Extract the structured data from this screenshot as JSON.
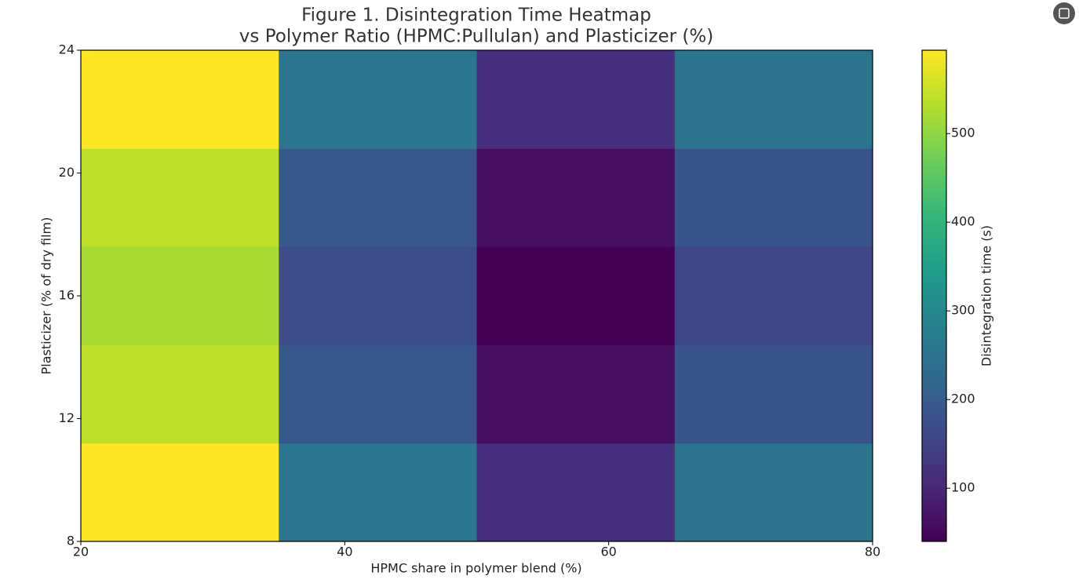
{
  "chart_data": {
    "type": "heatmap",
    "title": "Figure 1. Disintegration Time Heatmap",
    "subtitle": "vs Polymer Ratio (HPMC:Pullulan) and Plasticizer (%)",
    "x_label": "HPMC share in polymer blend (%)",
    "y_label": "Plasticizer (% of dry film)",
    "colorbar_label": "Disintegration time (s)",
    "x_bins": [
      20,
      35,
      50,
      65,
      80
    ],
    "y_bins": [
      8,
      11.2,
      14.4,
      17.6,
      20.8,
      24
    ],
    "values": [
      [
        594,
        255,
        115,
        250
      ],
      [
        540,
        190,
        60,
        180
      ],
      [
        520,
        170,
        40,
        160
      ],
      [
        540,
        190,
        60,
        180
      ],
      [
        594,
        255,
        115,
        250
      ]
    ],
    "xlim": [
      20,
      80
    ],
    "xticks": [
      20,
      40,
      60,
      80
    ],
    "ylim": [
      8,
      24
    ],
    "yticks": [
      8,
      12,
      16,
      20,
      24
    ],
    "colormap": "viridis",
    "clim": [
      40,
      594
    ],
    "cticks": [
      100,
      200,
      300,
      400,
      500
    ]
  }
}
